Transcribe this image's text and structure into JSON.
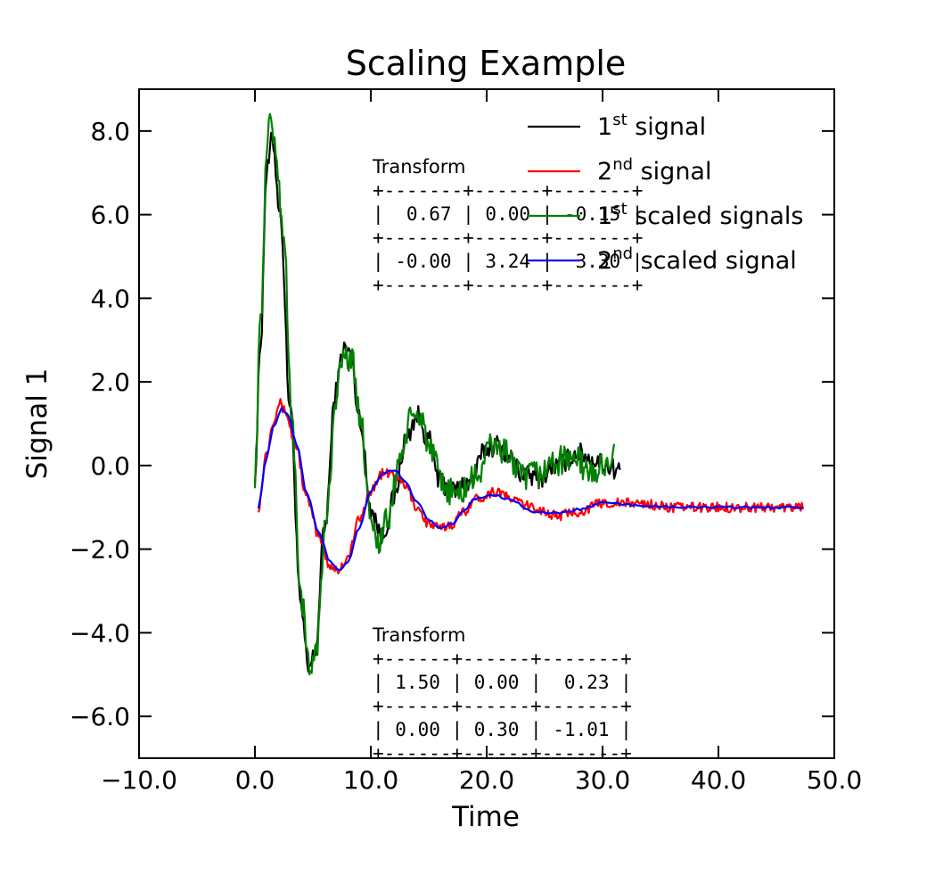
{
  "chart_data": {
    "type": "line",
    "title": "Scaling Example",
    "xlabel": "Time",
    "ylabel": "Signal 1",
    "xlim": [
      -10,
      50
    ],
    "ylim": [
      -7,
      9
    ],
    "x_ticks": [
      "−10.0",
      "0.0",
      "10.0",
      "20.0",
      "30.0",
      "40.0",
      "50.0"
    ],
    "y_ticks": [
      "−6.0",
      "−4.0",
      "−2.0",
      "0.0",
      "2.0",
      "4.0",
      "6.0",
      "8.0"
    ],
    "grid": false,
    "legend_position": "top-right",
    "series": [
      {
        "name_base": "1",
        "name_sup": "st",
        "name_rest": " signal",
        "color": "#000000",
        "noise": 0.25,
        "smooth": false,
        "x_start": 0,
        "x_end": 31.5,
        "keypoints": [
          [
            0,
            -0.2
          ],
          [
            0.5,
            3.0
          ],
          [
            1.0,
            7.0
          ],
          [
            1.5,
            7.8
          ],
          [
            2.2,
            6.0
          ],
          [
            3.0,
            1.5
          ],
          [
            4.0,
            -3.5
          ],
          [
            4.6,
            -4.9
          ],
          [
            5.2,
            -4.5
          ],
          [
            6.0,
            -1.5
          ],
          [
            7.0,
            1.8
          ],
          [
            7.6,
            2.8
          ],
          [
            8.2,
            2.7
          ],
          [
            9.0,
            1.2
          ],
          [
            10.0,
            -1.0
          ],
          [
            11.0,
            -1.7
          ],
          [
            12.0,
            -0.8
          ],
          [
            13.0,
            0.6
          ],
          [
            14.0,
            1.2
          ],
          [
            15.0,
            0.6
          ],
          [
            16.0,
            -0.4
          ],
          [
            17.0,
            -0.6
          ],
          [
            18.5,
            -0.4
          ],
          [
            20.0,
            0.4
          ],
          [
            21.0,
            0.5
          ],
          [
            22.0,
            0.2
          ],
          [
            23.0,
            -0.2
          ],
          [
            24.5,
            -0.3
          ],
          [
            26.0,
            0.0
          ],
          [
            28.0,
            0.3
          ],
          [
            29.5,
            0.1
          ],
          [
            31.5,
            -0.1
          ]
        ]
      },
      {
        "name_base": "2",
        "name_sup": "nd",
        "name_rest": " signal",
        "color": "#ff0000",
        "noise": 0.12,
        "smooth": false,
        "x_start": 0.3,
        "x_end": 47.3,
        "keypoints": [
          [
            0.3,
            -1.0
          ],
          [
            1.0,
            0.3
          ],
          [
            1.6,
            1.1
          ],
          [
            2.1,
            1.5
          ],
          [
            2.6,
            1.3
          ],
          [
            3.5,
            0.5
          ],
          [
            4.5,
            -0.8
          ],
          [
            5.5,
            -1.7
          ],
          [
            6.5,
            -2.4
          ],
          [
            7.2,
            -2.5
          ],
          [
            8.0,
            -2.2
          ],
          [
            9.0,
            -1.3
          ],
          [
            10.0,
            -0.6
          ],
          [
            11.0,
            -0.2
          ],
          [
            12.0,
            -0.2
          ],
          [
            13.0,
            -0.5
          ],
          [
            14.0,
            -1.0
          ],
          [
            15.0,
            -1.4
          ],
          [
            16.0,
            -1.5
          ],
          [
            17.0,
            -1.4
          ],
          [
            18.0,
            -1.1
          ],
          [
            19.0,
            -0.8
          ],
          [
            21.0,
            -0.6
          ],
          [
            22.0,
            -0.8
          ],
          [
            24.0,
            -1.0
          ],
          [
            26.0,
            -1.2
          ],
          [
            28.0,
            -1.1
          ],
          [
            30.0,
            -0.9
          ],
          [
            33.0,
            -0.9
          ],
          [
            36.0,
            -1.0
          ],
          [
            40.0,
            -1.0
          ],
          [
            44.0,
            -1.0
          ],
          [
            47.3,
            -1.0
          ]
        ]
      },
      {
        "name_base": "1",
        "name_sup": "st",
        "name_rest": " scaled signals",
        "color": "#008000",
        "noise": 0.35,
        "smooth": false,
        "x_start": 0,
        "x_end": 31.0,
        "keypoints": [
          [
            0,
            -0.2
          ],
          [
            0.5,
            3.5
          ],
          [
            1.0,
            7.3
          ],
          [
            1.3,
            8.5
          ],
          [
            1.8,
            7.4
          ],
          [
            2.5,
            5.5
          ],
          [
            3.2,
            1.0
          ],
          [
            4.0,
            -3.2
          ],
          [
            4.7,
            -4.9
          ],
          [
            5.3,
            -4.3
          ],
          [
            6.2,
            -1.2
          ],
          [
            7.0,
            1.7
          ],
          [
            7.6,
            2.6
          ],
          [
            8.3,
            2.6
          ],
          [
            9.0,
            1.3
          ],
          [
            10.0,
            -1.1
          ],
          [
            10.6,
            -1.9
          ],
          [
            11.5,
            -1.3
          ],
          [
            12.5,
            0.2
          ],
          [
            13.5,
            1.1
          ],
          [
            14.3,
            1.2
          ],
          [
            15.2,
            0.3
          ],
          [
            16.2,
            -0.5
          ],
          [
            17.5,
            -0.7
          ],
          [
            19.0,
            -0.3
          ],
          [
            20.5,
            0.5
          ],
          [
            21.8,
            0.3
          ],
          [
            23.0,
            -0.3
          ],
          [
            24.5,
            -0.2
          ],
          [
            26.0,
            0.1
          ],
          [
            27.5,
            0.2
          ],
          [
            29.0,
            -0.2
          ],
          [
            31.0,
            0.2
          ]
        ]
      },
      {
        "name_base": "2",
        "name_sup": "nd",
        "name_rest": " scaled signal",
        "color": "#0000ff",
        "noise": 0.03,
        "smooth": true,
        "x_start": 0.3,
        "x_end": 47.3,
        "keypoints": [
          [
            0.3,
            -1.0
          ],
          [
            1.0,
            0.2
          ],
          [
            1.6,
            0.9
          ],
          [
            2.3,
            1.35
          ],
          [
            2.9,
            1.2
          ],
          [
            3.6,
            0.5
          ],
          [
            4.5,
            -0.7
          ],
          [
            5.5,
            -1.6
          ],
          [
            6.5,
            -2.3
          ],
          [
            7.3,
            -2.5
          ],
          [
            8.0,
            -2.3
          ],
          [
            9.0,
            -1.5
          ],
          [
            10.0,
            -0.6
          ],
          [
            11.0,
            -0.2
          ],
          [
            12.0,
            -0.1
          ],
          [
            13.0,
            -0.4
          ],
          [
            14.0,
            -0.9
          ],
          [
            15.0,
            -1.3
          ],
          [
            16.0,
            -1.5
          ],
          [
            17.0,
            -1.4
          ],
          [
            18.0,
            -1.1
          ],
          [
            19.0,
            -0.8
          ],
          [
            20.5,
            -0.7
          ],
          [
            22.0,
            -0.8
          ],
          [
            24.0,
            -1.1
          ],
          [
            26.0,
            -1.15
          ],
          [
            28.0,
            -1.05
          ],
          [
            30.0,
            -0.9
          ],
          [
            33.0,
            -0.95
          ],
          [
            36.0,
            -1.0
          ],
          [
            40.0,
            -1.0
          ],
          [
            44.0,
            -1.0
          ],
          [
            47.3,
            -1.0
          ]
        ]
      }
    ],
    "annotations": [
      {
        "anchor_x": 10.0,
        "anchor_y": 7.0,
        "lines": [
          "Transform",
          "+-------+------+-------+",
          "|  0.67 | 0.00 | -0.15 |",
          "+-------+------+-------+",
          "| -0.00 | 3.24 |  3.30 |",
          "+-------+------+-------+"
        ]
      },
      {
        "anchor_x": 10.0,
        "anchor_y": -4.2,
        "lines": [
          "Transform",
          "+------+------+-------+",
          "| 1.50 | 0.00 |  0.23 |",
          "+------+------+-------+",
          "| 0.00 | 0.30 | -1.01 |",
          "+------+------+-------+"
        ]
      }
    ]
  }
}
